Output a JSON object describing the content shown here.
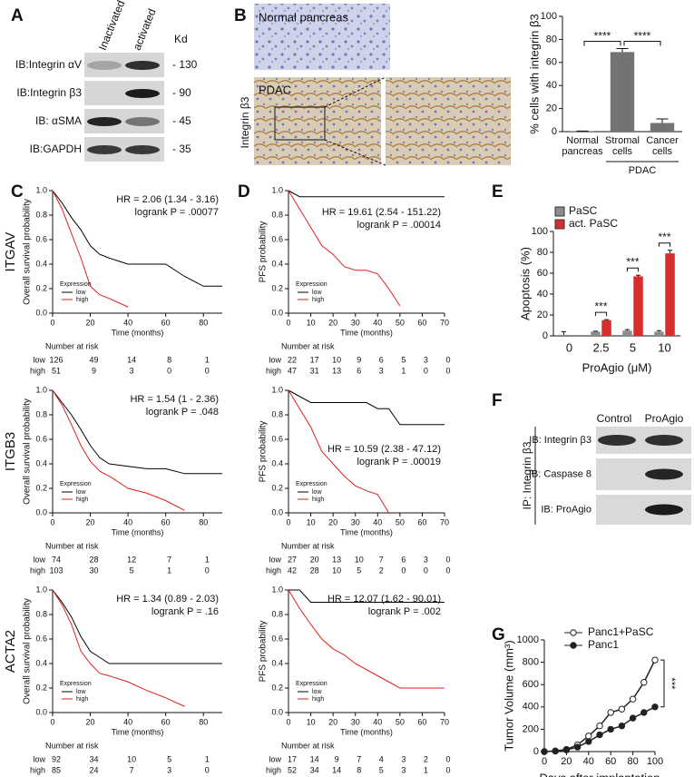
{
  "figure": {
    "panel_labels": [
      "A",
      "B",
      "C",
      "D",
      "E",
      "F",
      "G"
    ]
  },
  "blot_A": {
    "columns": [
      "Inactivated",
      "activated"
    ],
    "unit": "Kd",
    "rows": [
      {
        "label": "IB:Integrin αV",
        "kd": "- 130"
      },
      {
        "label": "IB:Integrin β3",
        "kd": "- 90"
      },
      {
        "label": "IB: αSMA",
        "kd": "- 45"
      },
      {
        "label": "IB:GAPDH",
        "kd": "- 35"
      }
    ]
  },
  "images_B": {
    "stain": "Integrin β3",
    "captions": [
      "Normal pancreas",
      "PDAC"
    ]
  },
  "blot_F": {
    "columns": [
      "Control",
      "ProAgio"
    ],
    "ip": "IP: Integrin β3",
    "rows": [
      "IB: Integrin β3",
      "IB: Caspase 8",
      "IB: ProAgio"
    ]
  },
  "chart_data": [
    {
      "type": "bar",
      "ylabel": "% cells with integrin β3",
      "categories": [
        "Normal pancreas",
        "Stromal cells",
        "Cancer cells"
      ],
      "group_label": "PDAC",
      "values": [
        0.3,
        69,
        7.5
      ],
      "errors": [
        0.2,
        3,
        3.5
      ],
      "color": "#737373",
      "ylim": [
        0,
        100
      ],
      "yticks": [
        0,
        20,
        40,
        60,
        80,
        100
      ],
      "annotations": [
        "****",
        "****"
      ]
    },
    {
      "type": "line",
      "gene": "ITGAV",
      "hr": "HR = 2.06 (1.34 - 3.16)",
      "logrank": "logrank P = .00077",
      "xlabel": "Time (months)",
      "ylabel": "Overall survival probability",
      "x": [
        0,
        5,
        10,
        15,
        20,
        25,
        30,
        40,
        50,
        60,
        70,
        80,
        90
      ],
      "xlim": [
        0,
        90
      ],
      "xticks": [
        0,
        20,
        40,
        60,
        80
      ],
      "ylim": [
        0,
        1
      ],
      "yticks": [
        {
          "value": 0,
          "label": "0.0"
        },
        {
          "value": 0.2,
          "label": "0.2"
        },
        {
          "value": 0.4,
          "label": "0.4"
        },
        {
          "value": 0.6,
          "label": "0.6"
        },
        {
          "value": 0.8,
          "label": "0.8"
        },
        {
          "value": 1,
          "label": "1.0"
        }
      ],
      "legend_title": "Expression",
      "legend": "lower left",
      "series": [
        {
          "name": "low",
          "color": "#000000",
          "values": [
            1,
            0.9,
            0.78,
            0.68,
            0.55,
            0.48,
            0.45,
            0.4,
            0.4,
            0.4,
            0.3,
            0.22,
            0.22
          ]
        },
        {
          "name": "high",
          "color": "#e0201b",
          "values": [
            1,
            0.85,
            0.65,
            0.45,
            0.22,
            0.15,
            0.12,
            0.05,
            null,
            null,
            null,
            null,
            null
          ]
        }
      ],
      "risk_table": {
        "title": "Number at risk",
        "rows": [
          {
            "name": "low",
            "values": [
              126,
              49,
              14,
              8,
              1
            ]
          },
          {
            "name": "high",
            "values": [
              51,
              9,
              3,
              0,
              0
            ]
          }
        ]
      }
    },
    {
      "type": "line",
      "gene": "ITGB3",
      "hr": "HR = 1.54 (1 - 2.36)",
      "logrank": "logrank P = .048",
      "xlabel": "Time (months)",
      "ylabel": "Overall survival probability",
      "x": [
        0,
        5,
        10,
        15,
        20,
        25,
        30,
        40,
        50,
        60,
        70,
        80,
        90
      ],
      "xlim": [
        0,
        90
      ],
      "xticks": [
        0,
        20,
        40,
        60,
        80
      ],
      "ylim": [
        0,
        1
      ],
      "yticks": [
        {
          "value": 0,
          "label": "0.0"
        },
        {
          "value": 0.2,
          "label": "0.2"
        },
        {
          "value": 0.4,
          "label": "0.4"
        },
        {
          "value": 0.6,
          "label": "0.6"
        },
        {
          "value": 0.8,
          "label": "0.8"
        },
        {
          "value": 1,
          "label": "1.0"
        }
      ],
      "legend_title": "Expression",
      "legend": "lower left",
      "series": [
        {
          "name": "low",
          "color": "#000000",
          "values": [
            1,
            0.9,
            0.8,
            0.68,
            0.55,
            0.45,
            0.4,
            0.38,
            0.36,
            0.36,
            0.32,
            0.32,
            0.32
          ]
        },
        {
          "name": "high",
          "color": "#e0201b",
          "values": [
            1,
            0.88,
            0.72,
            0.55,
            0.42,
            0.34,
            0.3,
            0.2,
            0.16,
            0.1,
            0.02,
            null,
            null
          ]
        }
      ],
      "risk_table": {
        "title": "Number at risk",
        "rows": [
          {
            "name": "low",
            "values": [
              74,
              28,
              12,
              7,
              1
            ]
          },
          {
            "name": "high",
            "values": [
              103,
              30,
              5,
              1,
              0
            ]
          }
        ]
      }
    },
    {
      "type": "line",
      "gene": "ACTA2",
      "hr": "HR = 1.34 (0.89 - 2.03)",
      "logrank": "logrank P = .16",
      "xlabel": "Time (months)",
      "ylabel": "Overall survival probability",
      "x": [
        0,
        5,
        10,
        15,
        20,
        25,
        30,
        40,
        50,
        60,
        70,
        80,
        90
      ],
      "xlim": [
        0,
        90
      ],
      "xticks": [
        0,
        20,
        40,
        60,
        80
      ],
      "ylim": [
        0,
        1
      ],
      "yticks": [
        {
          "value": 0,
          "label": "0.0"
        },
        {
          "value": 0.2,
          "label": "0.2"
        },
        {
          "value": 0.4,
          "label": "0.4"
        },
        {
          "value": 0.6,
          "label": "0.6"
        },
        {
          "value": 0.8,
          "label": "0.8"
        },
        {
          "value": 1,
          "label": "1.0"
        }
      ],
      "legend_title": "Expression",
      "legend": "lower left",
      "series": [
        {
          "name": "low",
          "color": "#000000",
          "values": [
            1,
            0.9,
            0.78,
            0.62,
            0.5,
            0.45,
            0.4,
            0.4,
            0.4,
            0.4,
            0.4,
            0.4,
            0.4
          ]
        },
        {
          "name": "high",
          "color": "#e0201b",
          "values": [
            1,
            0.88,
            0.72,
            0.5,
            0.4,
            0.32,
            0.3,
            0.25,
            0.18,
            0.12,
            0.05,
            null,
            null
          ]
        }
      ],
      "risk_table": {
        "title": "Number at risk",
        "rows": [
          {
            "name": "low",
            "values": [
              92,
              34,
              10,
              5,
              1
            ]
          },
          {
            "name": "high",
            "values": [
              85,
              24,
              7,
              3,
              0
            ]
          }
        ]
      }
    },
    {
      "type": "line",
      "hr": "HR = 19.61 (2.54 - 151.22)",
      "logrank": "logrank P = .00014",
      "xlabel": "Time (months)",
      "ylabel": "PFS probability",
      "x": [
        0,
        5,
        10,
        15,
        20,
        25,
        30,
        35,
        40,
        45,
        50,
        55,
        60,
        65,
        70
      ],
      "xlim": [
        0,
        70
      ],
      "xticks": [
        0,
        10,
        20,
        30,
        40,
        50,
        60,
        70
      ],
      "ylim": [
        0,
        1
      ],
      "yticks": [
        {
          "value": 0,
          "label": "0.0"
        },
        {
          "value": 0.2,
          "label": "0.2"
        },
        {
          "value": 0.4,
          "label": "0.4"
        },
        {
          "value": 0.6,
          "label": "0.6"
        },
        {
          "value": 0.8,
          "label": "0.8"
        },
        {
          "value": 1,
          "label": "1.0"
        }
      ],
      "legend_title": "Expression",
      "legend": "lower left",
      "series": [
        {
          "name": "low",
          "color": "#000000",
          "values": [
            1,
            0.95,
            0.95,
            0.95,
            0.95,
            0.95,
            0.95,
            0.95,
            0.95,
            0.95,
            0.95,
            0.95,
            0.95,
            0.95,
            0.95
          ]
        },
        {
          "name": "high",
          "color": "#e0201b",
          "values": [
            1,
            0.85,
            0.7,
            0.55,
            0.48,
            0.38,
            0.35,
            0.35,
            0.32,
            0.2,
            0.06,
            null,
            null,
            null,
            null
          ]
        }
      ],
      "risk_table": {
        "title": "Number at risk",
        "rows": [
          {
            "name": "low",
            "values": [
              22,
              17,
              10,
              9,
              6,
              5,
              3,
              0
            ]
          },
          {
            "name": "high",
            "values": [
              47,
              31,
              13,
              6,
              3,
              1,
              0,
              0
            ]
          }
        ]
      }
    },
    {
      "type": "line",
      "hr": "HR = 10.59 (2.38 - 47.12)",
      "logrank": "logrank P = .00019",
      "xlabel": "Time (months)",
      "ylabel": "PFS probability",
      "x": [
        0,
        5,
        10,
        15,
        20,
        25,
        30,
        35,
        40,
        45,
        50,
        55,
        60,
        65,
        70
      ],
      "xlim": [
        0,
        70
      ],
      "xticks": [
        0,
        10,
        20,
        30,
        40,
        50,
        60,
        70
      ],
      "ylim": [
        0,
        1
      ],
      "yticks": [
        {
          "value": 0,
          "label": "0.0"
        },
        {
          "value": 0.2,
          "label": "0.2"
        },
        {
          "value": 0.4,
          "label": "0.4"
        },
        {
          "value": 0.6,
          "label": "0.6"
        },
        {
          "value": 0.8,
          "label": "0.8"
        },
        {
          "value": 1,
          "label": "1.0"
        }
      ],
      "legend_title": "Expression",
      "legend": "lower left",
      "series": [
        {
          "name": "low",
          "color": "#000000",
          "values": [
            1,
            0.95,
            0.9,
            0.9,
            0.9,
            0.9,
            0.9,
            0.9,
            0.85,
            0.85,
            0.72,
            0.72,
            0.72,
            0.72,
            0.72
          ]
        },
        {
          "name": "high",
          "color": "#e0201b",
          "values": [
            1,
            0.85,
            0.7,
            0.5,
            0.4,
            0.3,
            0.22,
            0.18,
            0.15,
            0,
            null,
            null,
            null,
            null,
            null
          ]
        }
      ],
      "risk_table": {
        "title": "Number at risk",
        "rows": [
          {
            "name": "low",
            "values": [
              27,
              20,
              13,
              10,
              7,
              6,
              3,
              0
            ]
          },
          {
            "name": "high",
            "values": [
              42,
              28,
              10,
              5,
              2,
              0,
              0,
              0
            ]
          }
        ]
      }
    },
    {
      "type": "line",
      "hr": "HR = 12.07 (1.62 - 90.01)",
      "logrank": "logrank P = .002",
      "xlabel": "Time (months)",
      "ylabel": "PFS probability",
      "x": [
        0,
        5,
        10,
        15,
        20,
        25,
        30,
        35,
        40,
        45,
        50,
        55,
        60,
        65,
        70
      ],
      "xlim": [
        0,
        70
      ],
      "xticks": [
        0,
        10,
        20,
        30,
        40,
        50,
        60,
        70
      ],
      "ylim": [
        0,
        1
      ],
      "yticks": [
        {
          "value": 0,
          "label": "0.0"
        },
        {
          "value": 0.2,
          "label": "0.2"
        },
        {
          "value": 0.4,
          "label": "0.4"
        },
        {
          "value": 0.6,
          "label": "0.6"
        },
        {
          "value": 0.8,
          "label": "0.8"
        },
        {
          "value": 1,
          "label": "1.0"
        }
      ],
      "legend_title": "Expression",
      "legend": "lower left",
      "series": [
        {
          "name": "low",
          "color": "#000000",
          "values": [
            1,
            1,
            0.9,
            0.9,
            0.9,
            0.9,
            0.9,
            0.9,
            0.9,
            0.9,
            0.9,
            0.9,
            0.9,
            0.9,
            0.9
          ]
        },
        {
          "name": "high",
          "color": "#e0201b",
          "values": [
            1,
            0.85,
            0.72,
            0.6,
            0.52,
            0.47,
            0.4,
            0.35,
            0.3,
            0.25,
            0.2,
            0.2,
            0.2,
            0.2,
            0.2
          ]
        }
      ],
      "risk_table": {
        "title": "Number at risk",
        "rows": [
          {
            "name": "low",
            "values": [
              17,
              14,
              9,
              7,
              4,
              3,
              2,
              0
            ]
          },
          {
            "name": "high",
            "values": [
              52,
              34,
              14,
              8,
              5,
              3,
              1,
              0
            ]
          }
        ]
      }
    },
    {
      "type": "bar",
      "ylabel": "Apoptosis (%)",
      "xlabel": "ProAgio (μM)",
      "categories": [
        "0",
        "2.5",
        "5",
        "10"
      ],
      "series": [
        {
          "name": "PaSC",
          "color": "#8c8c8c",
          "values": [
            1,
            4,
            5,
            4
          ],
          "errors": [
            3,
            0.5,
            1,
            1
          ]
        },
        {
          "name": "act. PaSC",
          "color": "#d62d2d",
          "values": [
            null,
            15,
            57,
            79
          ],
          "errors": [
            null,
            0.5,
            1,
            3
          ]
        }
      ],
      "ylim": [
        0,
        100
      ],
      "yticks": [
        0,
        20,
        40,
        60,
        80,
        100
      ],
      "legend": "upper left",
      "annotations": [
        "***",
        "***",
        "***"
      ]
    },
    {
      "type": "line",
      "xlabel": "Days after implantation",
      "ylabel": "Tumor Volume (mm³)",
      "x": [
        0,
        10,
        20,
        30,
        40,
        50,
        60,
        70,
        80,
        90,
        100
      ],
      "xlim": [
        0,
        100
      ],
      "xticks": [
        0,
        20,
        40,
        60,
        80,
        100
      ],
      "ylim": [
        0,
        1000
      ],
      "yticks": [
        0,
        200,
        400,
        600,
        800,
        1000
      ],
      "legend": "upper left",
      "markers": true,
      "series": [
        {
          "name": "Panc1+PaSC",
          "color": "#222222",
          "fill": "#ffffff",
          "values": [
            0,
            5,
            20,
            60,
            140,
            230,
            350,
            380,
            470,
            620,
            820
          ]
        },
        {
          "name": "Panc1",
          "color": "#222222",
          "fill": "#222222",
          "values": [
            0,
            5,
            15,
            40,
            90,
            150,
            200,
            230,
            300,
            350,
            400
          ]
        }
      ],
      "annotations": [
        "***"
      ]
    }
  ]
}
